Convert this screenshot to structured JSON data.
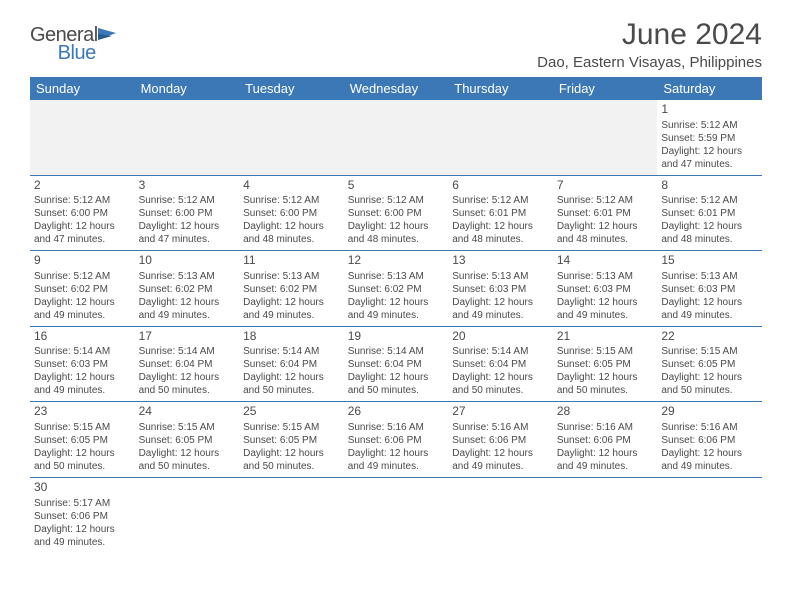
{
  "logo": {
    "text1": "General",
    "text2": "Blue"
  },
  "title": "June 2024",
  "location": "Dao, Eastern Visayas, Philippines",
  "colors": {
    "header_bg": "#3b78b5",
    "header_text": "#ffffff",
    "text": "#4a4a4a",
    "row_border": "#3b78b5",
    "blank_bg": "#f2f2f2"
  },
  "weekdays": [
    "Sunday",
    "Monday",
    "Tuesday",
    "Wednesday",
    "Thursday",
    "Friday",
    "Saturday"
  ],
  "days": {
    "1": {
      "sunrise": "5:12 AM",
      "sunset": "5:59 PM",
      "daylight": "12 hours and 47 minutes."
    },
    "2": {
      "sunrise": "5:12 AM",
      "sunset": "6:00 PM",
      "daylight": "12 hours and 47 minutes."
    },
    "3": {
      "sunrise": "5:12 AM",
      "sunset": "6:00 PM",
      "daylight": "12 hours and 47 minutes."
    },
    "4": {
      "sunrise": "5:12 AM",
      "sunset": "6:00 PM",
      "daylight": "12 hours and 48 minutes."
    },
    "5": {
      "sunrise": "5:12 AM",
      "sunset": "6:00 PM",
      "daylight": "12 hours and 48 minutes."
    },
    "6": {
      "sunrise": "5:12 AM",
      "sunset": "6:01 PM",
      "daylight": "12 hours and 48 minutes."
    },
    "7": {
      "sunrise": "5:12 AM",
      "sunset": "6:01 PM",
      "daylight": "12 hours and 48 minutes."
    },
    "8": {
      "sunrise": "5:12 AM",
      "sunset": "6:01 PM",
      "daylight": "12 hours and 48 minutes."
    },
    "9": {
      "sunrise": "5:12 AM",
      "sunset": "6:02 PM",
      "daylight": "12 hours and 49 minutes."
    },
    "10": {
      "sunrise": "5:13 AM",
      "sunset": "6:02 PM",
      "daylight": "12 hours and 49 minutes."
    },
    "11": {
      "sunrise": "5:13 AM",
      "sunset": "6:02 PM",
      "daylight": "12 hours and 49 minutes."
    },
    "12": {
      "sunrise": "5:13 AM",
      "sunset": "6:02 PM",
      "daylight": "12 hours and 49 minutes."
    },
    "13": {
      "sunrise": "5:13 AM",
      "sunset": "6:03 PM",
      "daylight": "12 hours and 49 minutes."
    },
    "14": {
      "sunrise": "5:13 AM",
      "sunset": "6:03 PM",
      "daylight": "12 hours and 49 minutes."
    },
    "15": {
      "sunrise": "5:13 AM",
      "sunset": "6:03 PM",
      "daylight": "12 hours and 49 minutes."
    },
    "16": {
      "sunrise": "5:14 AM",
      "sunset": "6:03 PM",
      "daylight": "12 hours and 49 minutes."
    },
    "17": {
      "sunrise": "5:14 AM",
      "sunset": "6:04 PM",
      "daylight": "12 hours and 50 minutes."
    },
    "18": {
      "sunrise": "5:14 AM",
      "sunset": "6:04 PM",
      "daylight": "12 hours and 50 minutes."
    },
    "19": {
      "sunrise": "5:14 AM",
      "sunset": "6:04 PM",
      "daylight": "12 hours and 50 minutes."
    },
    "20": {
      "sunrise": "5:14 AM",
      "sunset": "6:04 PM",
      "daylight": "12 hours and 50 minutes."
    },
    "21": {
      "sunrise": "5:15 AM",
      "sunset": "6:05 PM",
      "daylight": "12 hours and 50 minutes."
    },
    "22": {
      "sunrise": "5:15 AM",
      "sunset": "6:05 PM",
      "daylight": "12 hours and 50 minutes."
    },
    "23": {
      "sunrise": "5:15 AM",
      "sunset": "6:05 PM",
      "daylight": "12 hours and 50 minutes."
    },
    "24": {
      "sunrise": "5:15 AM",
      "sunset": "6:05 PM",
      "daylight": "12 hours and 50 minutes."
    },
    "25": {
      "sunrise": "5:15 AM",
      "sunset": "6:05 PM",
      "daylight": "12 hours and 50 minutes."
    },
    "26": {
      "sunrise": "5:16 AM",
      "sunset": "6:06 PM",
      "daylight": "12 hours and 49 minutes."
    },
    "27": {
      "sunrise": "5:16 AM",
      "sunset": "6:06 PM",
      "daylight": "12 hours and 49 minutes."
    },
    "28": {
      "sunrise": "5:16 AM",
      "sunset": "6:06 PM",
      "daylight": "12 hours and 49 minutes."
    },
    "29": {
      "sunrise": "5:16 AM",
      "sunset": "6:06 PM",
      "daylight": "12 hours and 49 minutes."
    },
    "30": {
      "sunrise": "5:17 AM",
      "sunset": "6:06 PM",
      "daylight": "12 hours and 49 minutes."
    }
  },
  "layout": {
    "first_day_column": 6,
    "num_days": 30,
    "labels": {
      "sunrise": "Sunrise:",
      "sunset": "Sunset:",
      "daylight": "Daylight:"
    }
  }
}
